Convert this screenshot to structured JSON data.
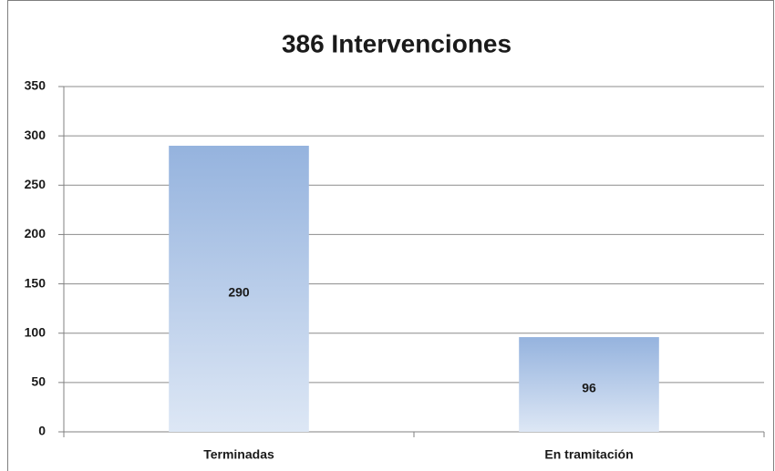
{
  "chart_data": {
    "type": "bar",
    "title": "386 Intervenciones",
    "categories": [
      "Terminadas",
      "En tramitación"
    ],
    "values": [
      290,
      96
    ],
    "color": "#95b3de",
    "ylim": [
      0,
      350
    ],
    "yticks": [
      0,
      50,
      100,
      150,
      200,
      250,
      300,
      350
    ],
    "grid": true
  }
}
